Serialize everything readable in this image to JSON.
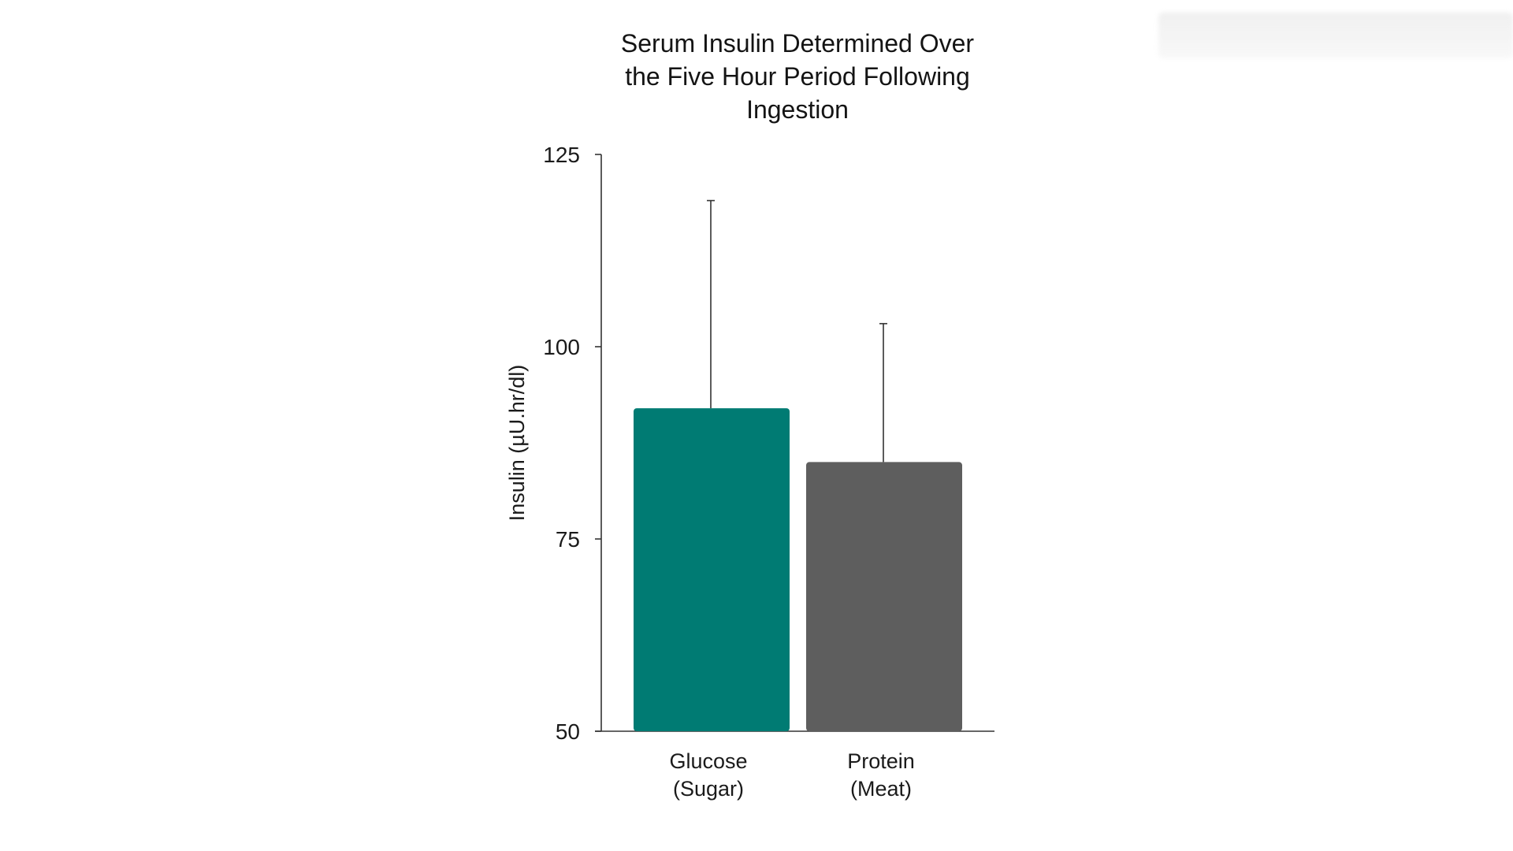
{
  "chart_data": {
    "type": "bar",
    "title": "Serum Insulin Determined Over\nthe Five Hour Period Following\nIngestion",
    "xlabel": "",
    "ylabel": "Insulin (µU.hr/dl)",
    "ylim": [
      50,
      125
    ],
    "yticks": [
      50,
      75,
      100,
      125
    ],
    "categories": [
      {
        "line1": "Glucose",
        "line2": "(Sugar)"
      },
      {
        "line1": "Protein",
        "line2": "(Meat)"
      }
    ],
    "values": [
      92,
      85
    ],
    "error_upper": [
      119,
      103
    ],
    "colors": [
      "#007b73",
      "#5e5e5e"
    ],
    "grid": false,
    "legend": "none"
  }
}
